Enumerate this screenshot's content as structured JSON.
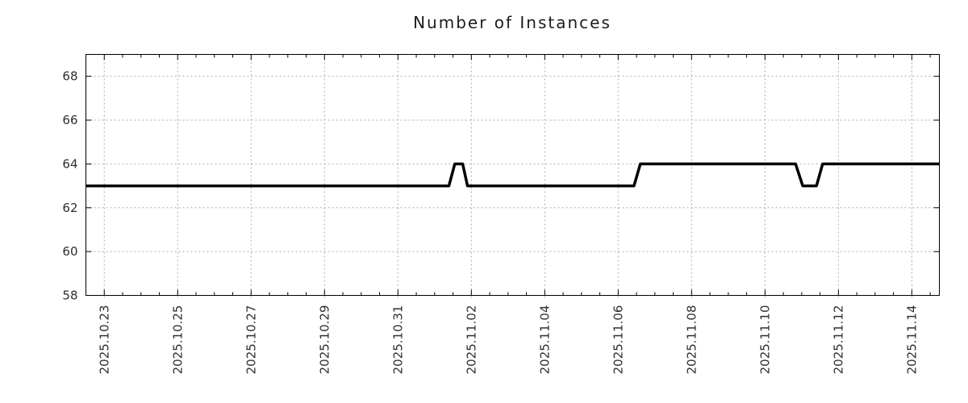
{
  "chart_data": {
    "type": "line",
    "title": "Number of Instances",
    "x_axis": {
      "min": "2025.10.22 12:00",
      "max": "2025.11.14 18:00",
      "major_tick_labels": [
        "2025.10.23",
        "2025.10.25",
        "2025.10.27",
        "2025.10.29",
        "2025.10.31",
        "2025.11.02",
        "2025.11.04",
        "2025.11.06",
        "2025.11.08",
        "2025.11.10",
        "2025.11.12",
        "2025.11.14"
      ],
      "major_tick_interval_days": 2,
      "minor_tick_interval_hours": 12,
      "tick_label_rotation_deg": 90
    },
    "y_axis": {
      "min": 58,
      "max": 69,
      "ticks": [
        58,
        60,
        62,
        64,
        66,
        68
      ]
    },
    "series": [
      {
        "name": "instances",
        "color": "#000000",
        "width": 3.5,
        "points": [
          [
            "2025.10.22 12:00",
            63
          ],
          [
            "2025.11.01 09:20",
            63
          ],
          [
            "2025.11.01 13:10",
            64
          ],
          [
            "2025.11.01 18:20",
            64
          ],
          [
            "2025.11.01 21:30",
            63
          ],
          [
            "2025.11.06 10:20",
            63
          ],
          [
            "2025.11.06 14:30",
            64
          ],
          [
            "2025.11.10 20:00",
            64
          ],
          [
            "2025.11.11 00:40",
            63
          ],
          [
            "2025.11.11 09:40",
            63
          ],
          [
            "2025.11.11 13:40",
            64
          ],
          [
            "2025.11.14 18:00",
            64
          ]
        ]
      }
    ],
    "grid": {
      "show": true,
      "color": "#aaaaaa",
      "style": "dotted"
    },
    "legend": {
      "show": false
    },
    "colors": {
      "background": "#ffffff",
      "axis": "#000000",
      "tick_text": "#2e2e2e",
      "title_text": "#1c1c1c"
    }
  }
}
